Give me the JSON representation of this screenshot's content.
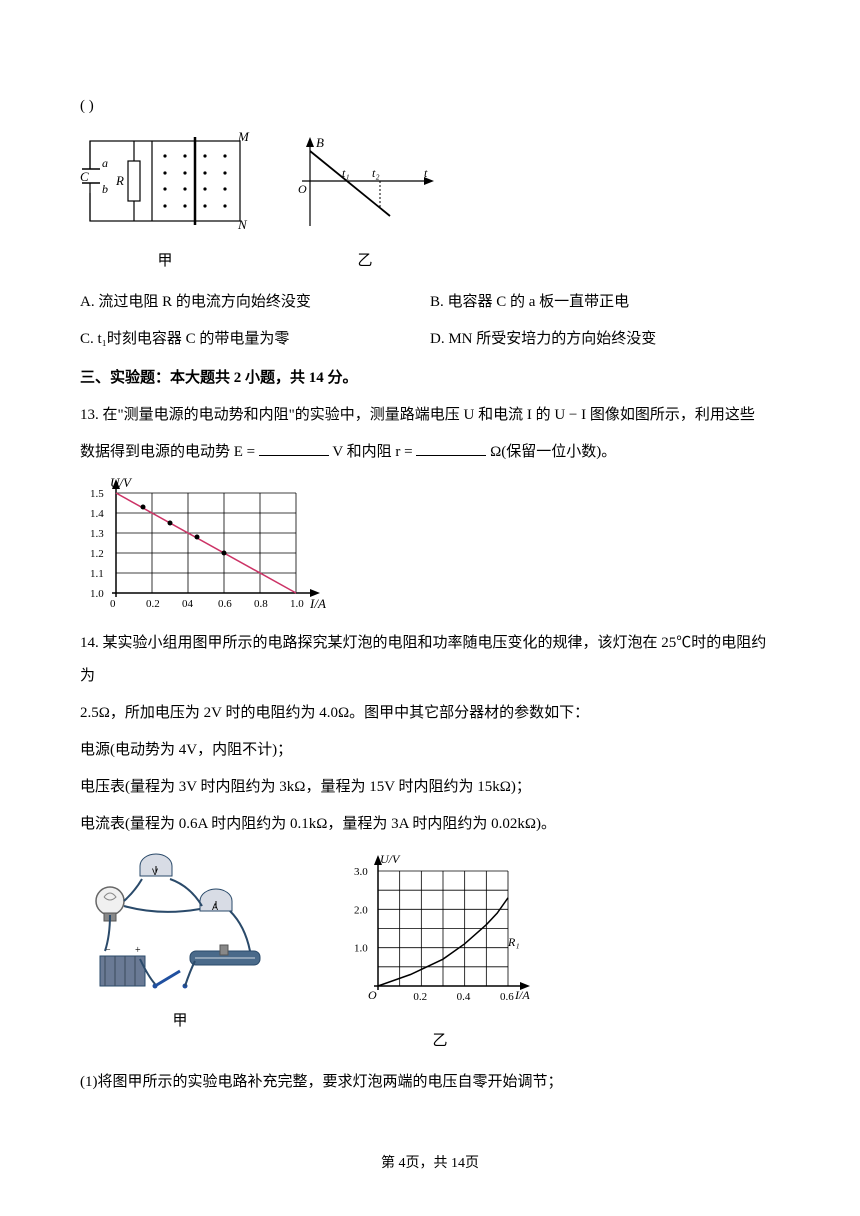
{
  "answer_marker": "(    )",
  "options": {
    "a": "A. 流过电阻 R 的电流方向始终没变",
    "b": "B. 电容器 C 的 a 板一直带正电",
    "c": "C. t₁时刻电容器 C 的带电量为零",
    "d": "D. MN 所受安培力的方向始终没变"
  },
  "section_head": "三、实验题：本大题共 2 小题，共 14 分。",
  "q13": {
    "text1": "13. 在\"测量电源的电动势和内阻\"的实验中，测量路端电压 U 和电流 I 的 U − I 图像如图所示，利用这些",
    "text2_pre": "数据得到电源的电动势 E =",
    "text2_mid": "V 和内阻 r =",
    "text2_post": "Ω(保留一位小数)。"
  },
  "q14": {
    "line1": "14. 某实验小组用图甲所示的电路探究某灯泡的电阻和功率随电压变化的规律，该灯泡在 25℃时的电阻约为",
    "line2": "2.5Ω，所加电压为 2V 时的电阻约为 4.0Ω。图甲中其它部分器材的参数如下：",
    "line3": "电源(电动势为 4V，内阻不计)；",
    "line4": "电压表(量程为 3V 时内阻约为 3kΩ，量程为 15V 时内阻约为 15kΩ)；",
    "line5": "电流表(量程为 0.6A 时内阻约为 0.1kΩ，量程为 3A 时内阻约为 0.02kΩ)。",
    "subq1": "(1)将图甲所示的实验电路补充完整，要求灯泡两端的电压自零开始调节；"
  },
  "footer": "第 4页，共 14页",
  "fig_circuit": {
    "labels": {
      "a": "a",
      "b": "b",
      "C": "C",
      "R": "R",
      "M": "M",
      "N": "N",
      "caption": "甲"
    },
    "colors": {
      "stroke": "#000000",
      "dot": "#000000"
    }
  },
  "fig_bt": {
    "labels": {
      "B": "B",
      "O": "O",
      "t1": "t₁",
      "t2": "t₂",
      "t": "t",
      "caption": "乙"
    },
    "colors": {
      "stroke": "#000000"
    }
  },
  "fig_ui_graph": {
    "ylabel": "U/V",
    "xlabel": "I/A",
    "yticks": [
      "1.0",
      "1.1",
      "1.2",
      "1.3",
      "1.4",
      "1.5"
    ],
    "xticks": [
      "0",
      "0.2",
      "04",
      "0.6",
      "0.8",
      "1.0"
    ],
    "line_color": "#cc3366",
    "grid_color": "#000000",
    "points": [
      {
        "x": 0,
        "y": 1.5
      },
      {
        "x": 0.2,
        "y": 1.4
      },
      {
        "x": 0.4,
        "y": 1.3
      },
      {
        "x": 0.6,
        "y": 1.2
      },
      {
        "x": 0.8,
        "y": 1.1
      },
      {
        "x": 1.0,
        "y": 1.0
      }
    ],
    "data_points": [
      {
        "x": 0.15,
        "y": 1.43
      },
      {
        "x": 0.3,
        "y": 1.35
      },
      {
        "x": 0.45,
        "y": 1.28
      },
      {
        "x": 0.6,
        "y": 1.2
      }
    ]
  },
  "fig_circuit2": {
    "caption": "甲",
    "colors": {
      "wire": "#2a4a6a",
      "meter_body": "#d8dce5",
      "battery": "#6a7a95",
      "bulb": "#d0d0d0",
      "rheostat": "#4a6a8a",
      "switch": "#2050a0"
    }
  },
  "fig_uv_graph": {
    "ylabel": "U/V",
    "xlabel": "I/A",
    "caption": "乙",
    "label_R1": "R₁",
    "yticks": [
      "1.0",
      "2.0",
      "3.0"
    ],
    "xticks": [
      "0.2",
      "0.4",
      "0.6"
    ],
    "origin": "O",
    "grid_color": "#000000",
    "curve_color": "#000000",
    "curve": [
      {
        "x": 0.0,
        "y": 0.0
      },
      {
        "x": 0.15,
        "y": 0.3
      },
      {
        "x": 0.3,
        "y": 0.7
      },
      {
        "x": 0.4,
        "y": 1.1
      },
      {
        "x": 0.5,
        "y": 1.6
      },
      {
        "x": 0.55,
        "y": 1.9
      },
      {
        "x": 0.6,
        "y": 2.3
      }
    ]
  }
}
